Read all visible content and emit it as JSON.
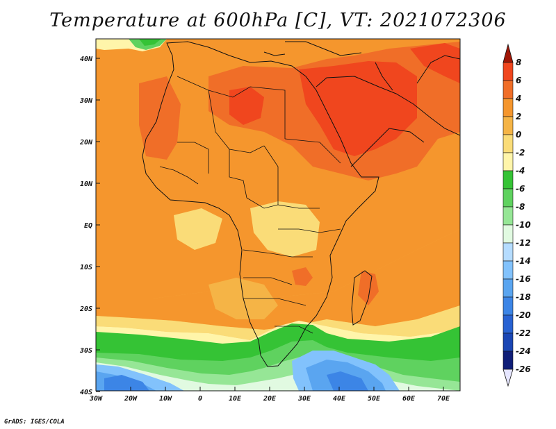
{
  "title": "Temperature at 600hPa [C], VT: 2021072306",
  "credit": "GrADS: IGES/COLA",
  "axes": {
    "lon_ticks": [
      "30W",
      "20W",
      "10W",
      "0",
      "10E",
      "20E",
      "30E",
      "40E",
      "50E",
      "60E",
      "70E"
    ],
    "lat_ticks": [
      "40N",
      "30N",
      "20N",
      "10N",
      "EQ",
      "10S",
      "20S",
      "30S",
      "40S"
    ]
  },
  "colorbar": {
    "labels": [
      "8",
      "6",
      "4",
      "2",
      "0",
      "-2",
      "-4",
      "-6",
      "-8",
      "-10",
      "-12",
      "-14",
      "-16",
      "-18",
      "-20",
      "-22",
      "-24",
      "-26"
    ],
    "colors": [
      "#c81e0f",
      "#f0461e",
      "#f06e28",
      "#f5962d",
      "#f5b446",
      "#fadc78",
      "#fff5aa",
      "#35c335",
      "#5fd25f",
      "#96e696",
      "#e1fae1",
      "#b5dcff",
      "#82c2fc",
      "#5aa5f0",
      "#3c85e6",
      "#2862d2",
      "#1a46b4",
      "#0f1e78"
    ],
    "arrow_top_color": "#a01606",
    "arrow_bottom_color": "#e6e6ff"
  },
  "map_colors": {
    "warm_hi": "#f0461e",
    "warm": "#f06e28",
    "mid": "#f5962d",
    "light": "#f5b446",
    "pale": "#fadc78",
    "cream": "#fff5aa",
    "green": "#35c335",
    "lightgreen": "#5fd25f",
    "palegreen": "#96e696",
    "icy": "#e1fae1",
    "blue1": "#82c2fc",
    "blue2": "#5aa5f0",
    "blue3": "#3c85e6",
    "blue4": "#2862d2"
  }
}
